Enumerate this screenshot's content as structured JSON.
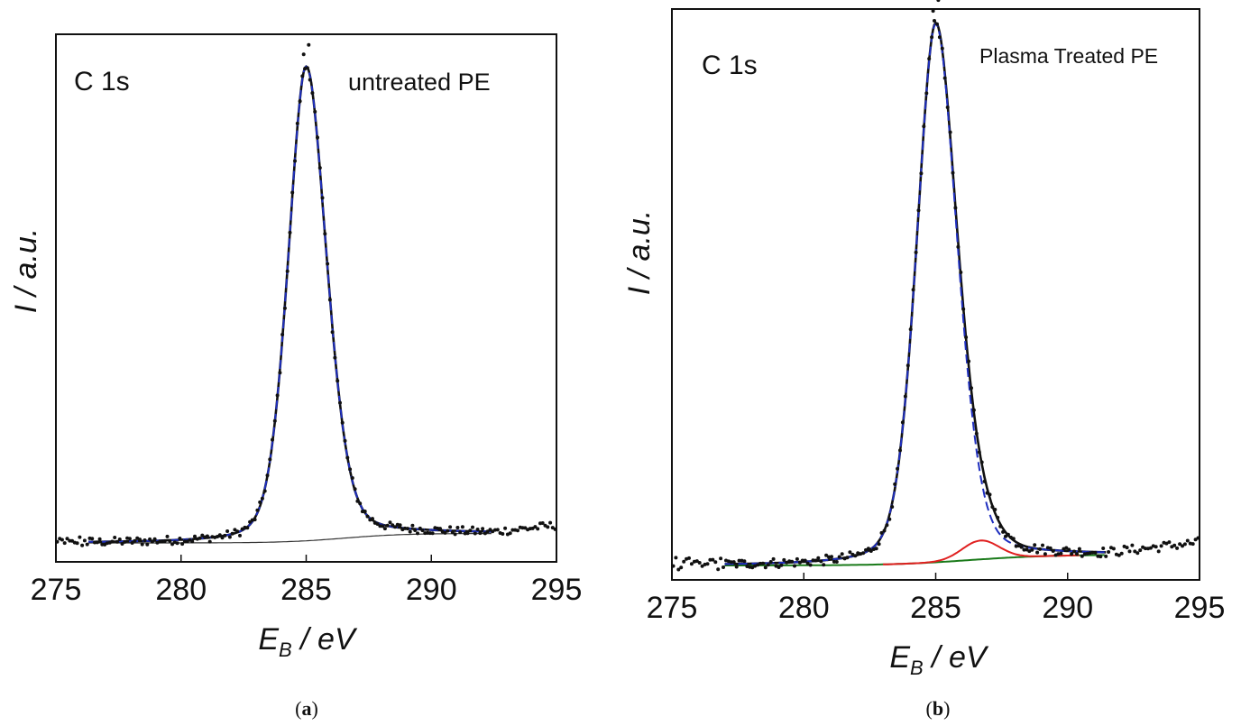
{
  "chart_data": [
    {
      "type": "line",
      "panel": "(a)",
      "caption_letter": "a",
      "title_left": "C 1s",
      "title_right": "untreated PE",
      "xlabel_main": "E",
      "xlabel_sub": "B",
      "xlabel_unit": " / eV",
      "ylabel": "I / a.u.",
      "xlim": [
        275,
        295
      ],
      "xticks": [
        "275",
        "280",
        "285",
        "290",
        "295"
      ],
      "peak": {
        "center": 285.0,
        "height": 1.0,
        "sigma_left": 0.75,
        "sigma_right": 0.85
      },
      "background": {
        "start": 276.0,
        "end": 292.5,
        "low": 0.0,
        "high": 0.02,
        "step_center": 286.5,
        "step_width": 1.2
      },
      "data_range": [
        275.0,
        295.0
      ],
      "fit_range": [
        276.3,
        292.5
      ],
      "ylim": [
        -0.05,
        1.1
      ],
      "series": [
        {
          "role": "data",
          "color": "#111111",
          "style": "dots"
        },
        {
          "role": "envelope fit",
          "color": "#111111",
          "style": "solid"
        },
        {
          "role": "component",
          "color": "#1f2fbf",
          "style": "dashed"
        },
        {
          "role": "background",
          "color": "#333333",
          "style": "thin"
        }
      ]
    },
    {
      "type": "line",
      "panel": "(b)",
      "caption_letter": "b",
      "title_left": "C 1s",
      "title_right": "Plasma Treated PE",
      "xlabel_main": "E",
      "xlabel_sub": "B",
      "xlabel_unit": " / eV",
      "ylabel": "I / a.u.",
      "xlim": [
        275,
        295
      ],
      "xticks": [
        "275",
        "280",
        "285",
        "290",
        "295"
      ],
      "peak": {
        "center": 285.0,
        "height": 1.0,
        "sigma_left": 0.75,
        "sigma_right": 0.85
      },
      "secondary_peak": {
        "center": 286.7,
        "height": 0.035,
        "sigma": 0.7
      },
      "background": {
        "start": 277.0,
        "end": 291.5,
        "low": 0.0,
        "high": 0.02,
        "step_center": 286.3,
        "step_width": 1.5
      },
      "data_range": [
        275.0,
        295.0
      ],
      "fit_range": [
        277.0,
        291.5
      ],
      "ylim": [
        -0.03,
        1.07
      ],
      "series": [
        {
          "role": "data",
          "color": "#111111",
          "style": "dots"
        },
        {
          "role": "envelope fit",
          "color": "#111111",
          "style": "solid"
        },
        {
          "role": "C-C component",
          "color": "#1f2fbf",
          "style": "dashed"
        },
        {
          "role": "C-O component",
          "color": "#e02020",
          "style": "solid"
        },
        {
          "role": "background",
          "color": "#1a7a1a",
          "style": "solid"
        }
      ]
    }
  ]
}
